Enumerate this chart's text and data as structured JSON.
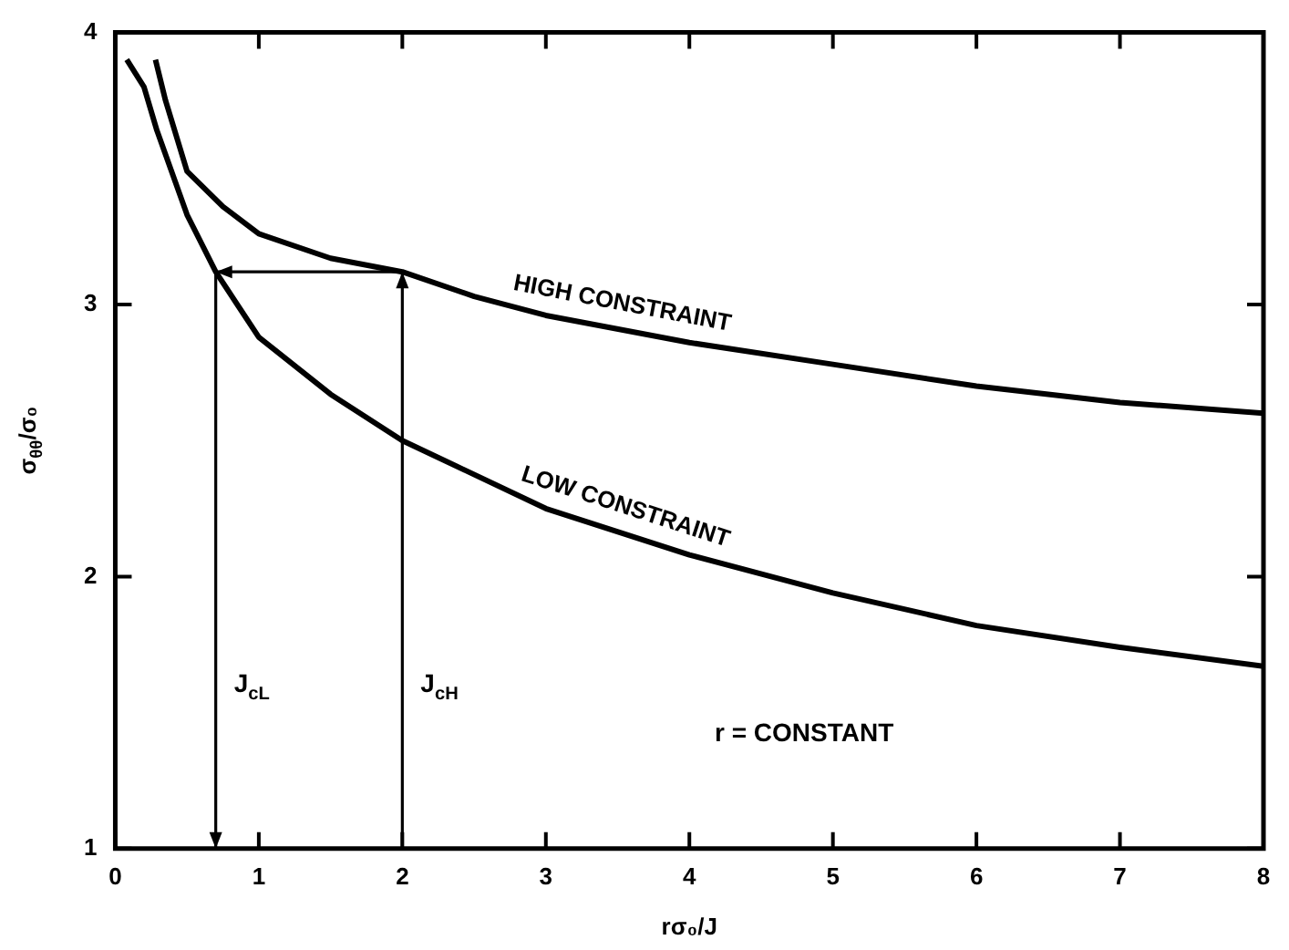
{
  "chart_data": {
    "type": "line",
    "xlabel": "rσ₀/J",
    "ylabel": "σ$_{θθ}$/σ₀",
    "xlim": [
      0,
      8
    ],
    "ylim": [
      1,
      4
    ],
    "xticks": [
      0,
      1,
      2,
      3,
      4,
      5,
      6,
      7,
      8
    ],
    "yticks": [
      1,
      2,
      3,
      4
    ],
    "grid": false,
    "legend": false,
    "marker": "none",
    "line_style": "solid",
    "series": [
      {
        "name": "HIGH CONSTRAINT",
        "color": "#000000",
        "x": [
          0.28,
          0.35,
          0.5,
          0.75,
          1,
          1.5,
          2,
          2.5,
          3,
          4,
          5,
          6,
          7,
          8
        ],
        "values": [
          3.9,
          3.75,
          3.49,
          3.36,
          3.26,
          3.17,
          3.12,
          3.03,
          2.96,
          2.86,
          2.78,
          2.7,
          2.64,
          2.6
        ]
      },
      {
        "name": "LOW CONSTRAINT",
        "color": "#000000",
        "x": [
          0.08,
          0.2,
          0.29,
          0.5,
          0.7,
          1,
          1.5,
          2,
          3,
          4,
          5,
          6,
          7,
          8
        ],
        "values": [
          3.9,
          3.8,
          3.64,
          3.33,
          3.12,
          2.88,
          2.67,
          2.5,
          2.25,
          2.08,
          1.94,
          1.82,
          1.74,
          1.67
        ]
      },
      {
        "color": "#000000",
        "x": [
          2,
          2,
          0.7,
          0.7
        ],
        "values": [
          1,
          3.12,
          3.12,
          1
        ]
      }
    ],
    "annotations": [
      "J$_{cL}$",
      "J$_{cH}$",
      "r = CONSTANT"
    ]
  }
}
